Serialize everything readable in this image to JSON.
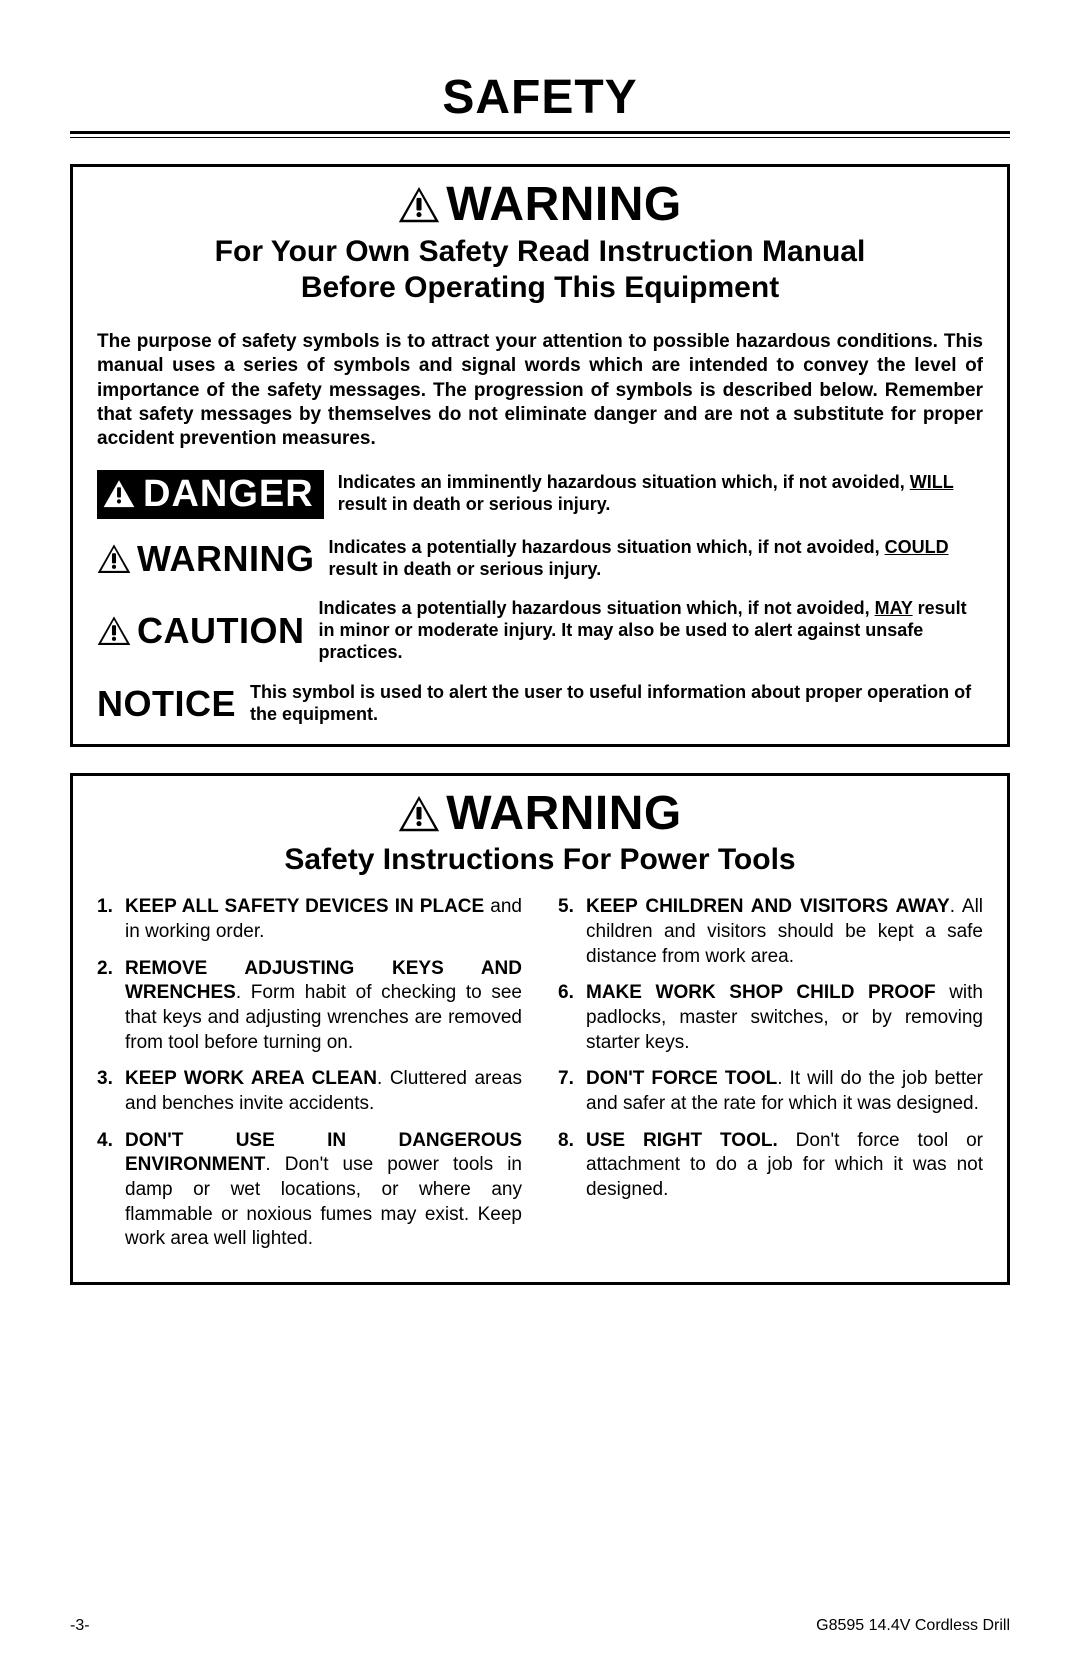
{
  "page_title": "SAFETY",
  "box1": {
    "warning_word": "WARNING",
    "sub_heading_line1": "For Your Own Safety Read Instruction Manual",
    "sub_heading_line2": "Before Operating This Equipment",
    "intro": "The purpose of safety symbols is to attract your attention to possible hazardous conditions. This manual uses a series of symbols and signal words which are intended to convey the level of importance of the safety messages. The progression of symbols is described below. Remember that safety messages by themselves do not eliminate danger and are not a substitute for proper accident prevention measures.",
    "danger": {
      "label": "DANGER",
      "desc_pre": "Indicates an imminently hazardous situation which, if not avoided, ",
      "desc_under": "WILL",
      "desc_post": " result in death or serious injury."
    },
    "warning": {
      "label": "WARNING",
      "desc_pre": "Indicates a potentially hazardous situation which, if not avoided, ",
      "desc_under": "COULD",
      "desc_post": " result in death or serious injury."
    },
    "caution": {
      "label": "CAUTION",
      "desc_pre": "Indicates a potentially hazardous situation which, if not avoided, ",
      "desc_under": "MAY",
      "desc_post": " result in minor or moderate injury. It may also be used to alert against unsafe practices."
    },
    "notice": {
      "label": "NOTICE",
      "desc": "This symbol is used to alert the user to useful information about proper operation of the equipment."
    }
  },
  "box2": {
    "warning_word": "WARNING",
    "heading": "Safety Instructions For Power Tools",
    "left": [
      {
        "n": "1.",
        "lead": "KEEP ALL SAFETY DEVICES IN PLACE",
        "rest": " and in working order."
      },
      {
        "n": "2.",
        "lead": "REMOVE ADJUSTING KEYS AND WRENCHES",
        "rest": ". Form habit of checking to see that keys and adjusting wrenches are removed from tool before turning on."
      },
      {
        "n": "3.",
        "lead": "KEEP WORK AREA CLEAN",
        "rest": ". Cluttered areas and benches invite accidents."
      },
      {
        "n": "4.",
        "lead": "DON'T USE IN DANGEROUS ENVIRONMENT",
        "rest": ". Don't use power tools in damp or wet locations, or where any flammable or noxious fumes may exist. Keep work area well lighted."
      }
    ],
    "right": [
      {
        "n": "5.",
        "lead": "KEEP CHILDREN AND VISITORS AWAY",
        "rest": ". All children and visitors should be kept a safe distance from work area."
      },
      {
        "n": "6.",
        "lead": "MAKE WORK SHOP CHILD PROOF",
        "rest": " with padlocks, master switches, or by removing starter keys."
      },
      {
        "n": "7.",
        "lead": "DON'T FORCE TOOL",
        "rest": ". It will do the job better and safer at the rate for which it was designed."
      },
      {
        "n": "8.",
        "lead": "USE RIGHT TOOL.",
        "rest": " Don't force tool or attachment to do a job for which it was not designed."
      }
    ]
  },
  "footer": {
    "page": "-3-",
    "doc": "G8595 14.4V Cordless Drill"
  }
}
